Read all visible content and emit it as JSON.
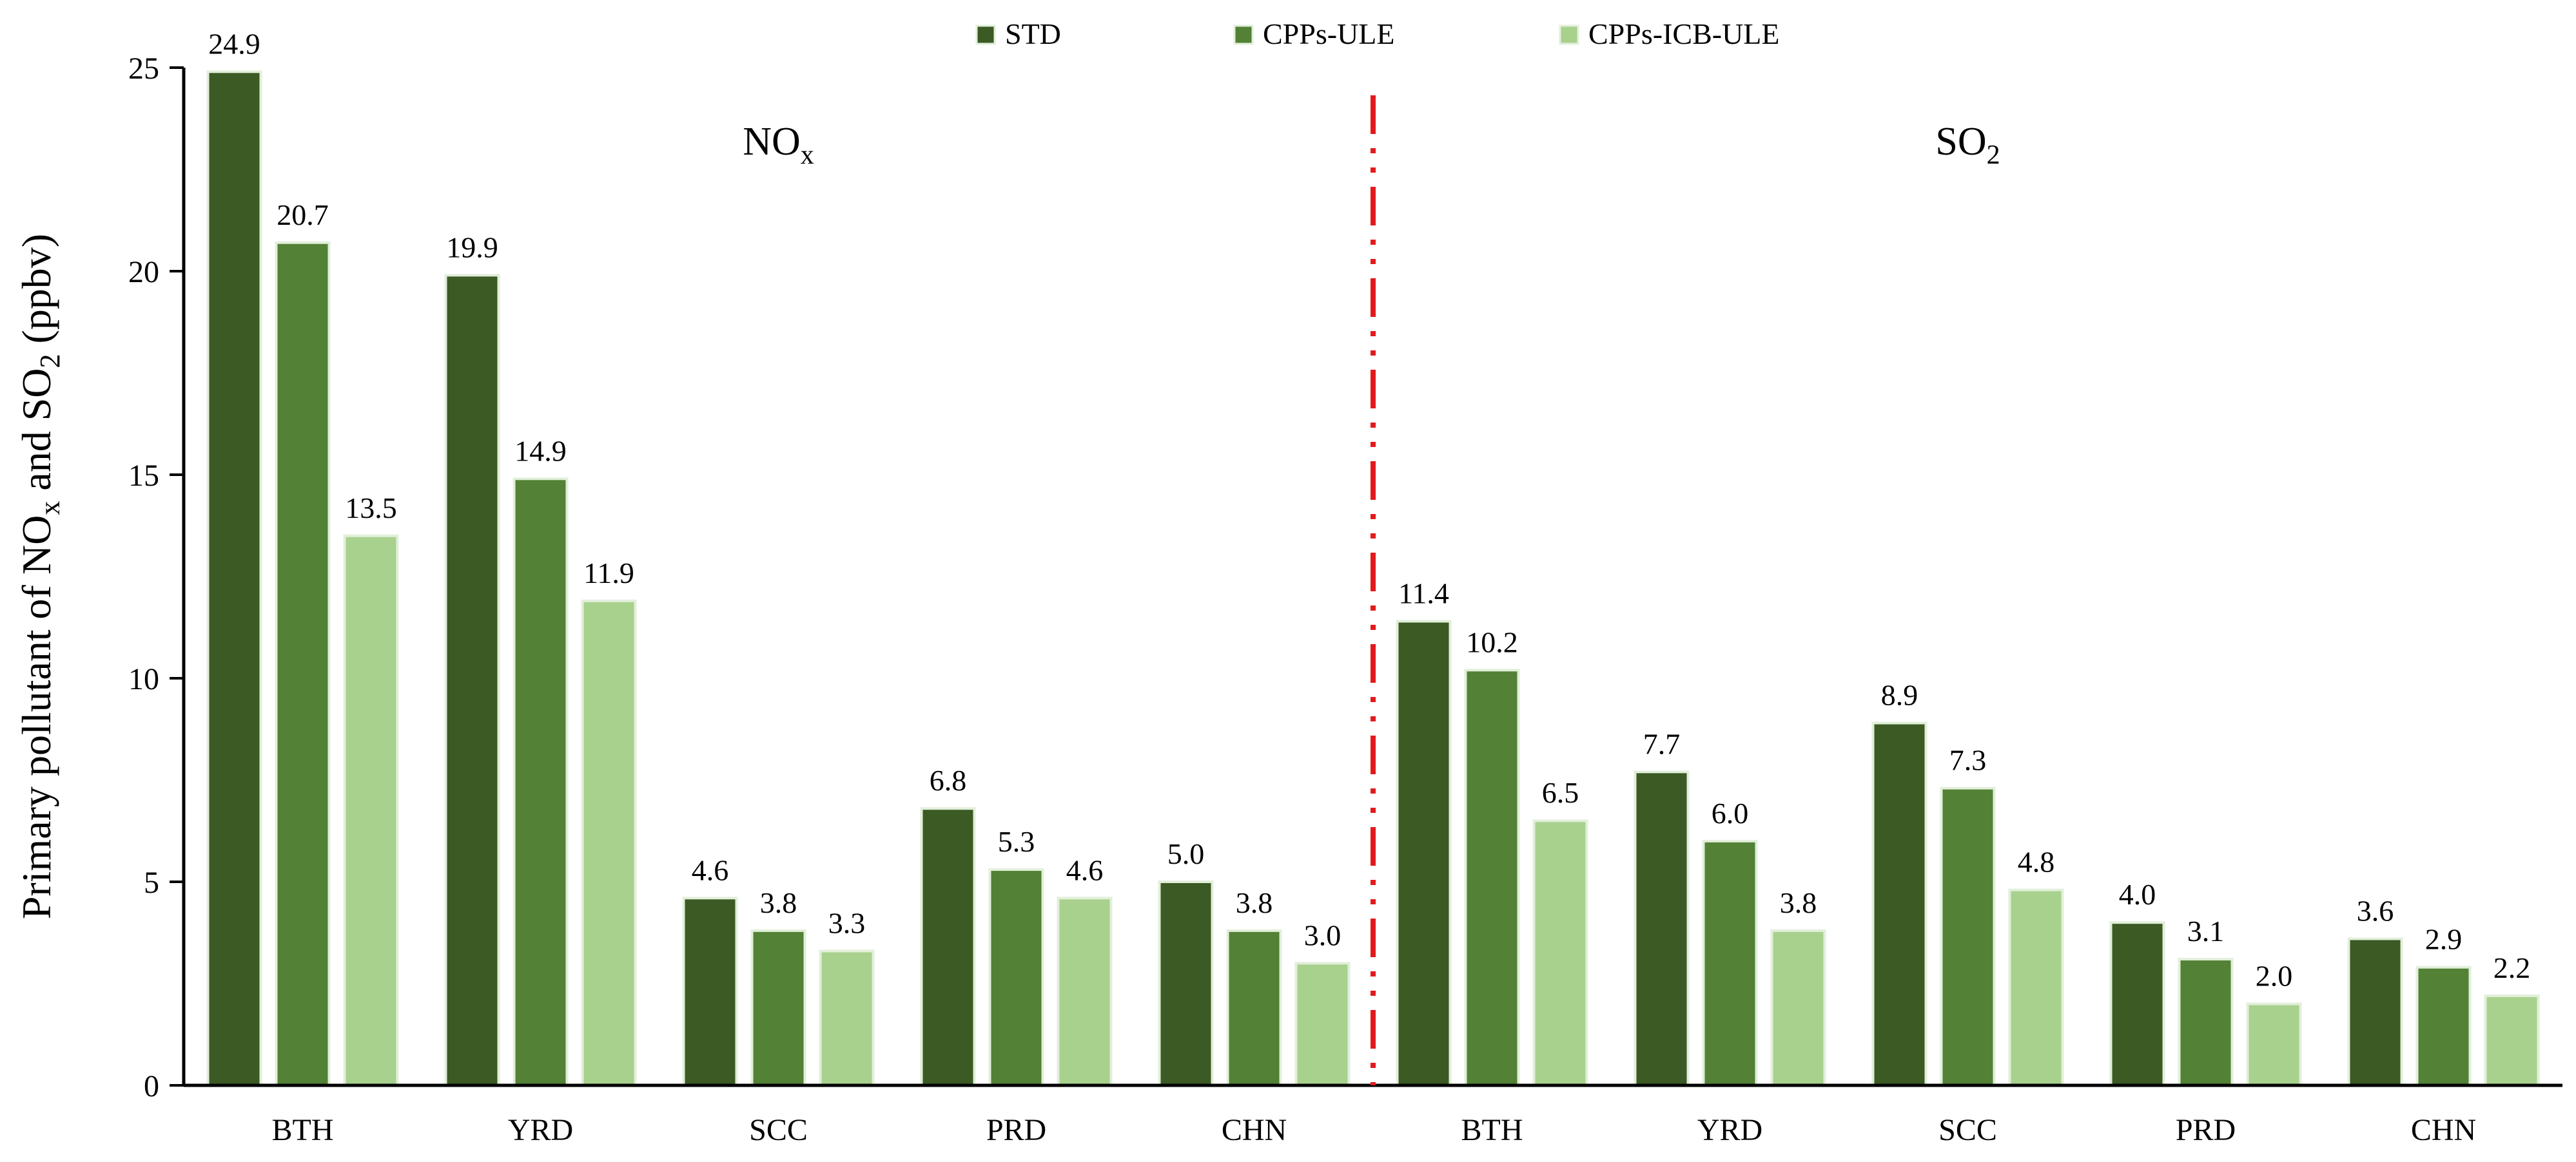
{
  "chart_data": {
    "type": "bar",
    "ylabel": {
      "parts": [
        "Primary pollutant  of  NO",
        "x",
        " and SO",
        "2",
        " (ppbv)"
      ]
    },
    "ylim": [
      0,
      25
    ],
    "yticks": [
      0,
      5,
      10,
      15,
      20,
      25
    ],
    "grid": false,
    "legend_position": "top-center",
    "categories": [
      "BTH",
      "YRD",
      "SCC",
      "PRD",
      "CHN",
      "BTH",
      "YRD",
      "SCC",
      "PRD",
      "CHN"
    ],
    "panels": [
      {
        "label": {
          "base": "NO",
          "sub": "x"
        },
        "category_range": [
          0,
          4
        ]
      },
      {
        "label": {
          "base": "SO",
          "sub": "2"
        },
        "category_range": [
          5,
          9
        ]
      }
    ],
    "separator": {
      "after_category": 4,
      "color": "#e31a1c",
      "style": "dash-dot-dot"
    },
    "series": [
      {
        "name": "STD",
        "color": "#3b5a24",
        "values": [
          24.9,
          19.9,
          4.6,
          6.8,
          5.0,
          11.4,
          7.7,
          8.9,
          4.0,
          3.6
        ]
      },
      {
        "name": "CPPs-ULE",
        "color": "#538135",
        "values": [
          20.7,
          14.9,
          3.8,
          5.3,
          3.8,
          10.2,
          6.0,
          7.3,
          3.1,
          2.9
        ]
      },
      {
        "name": "CPPs-ICB-ULE",
        "color": "#a9d18e",
        "values": [
          13.5,
          11.9,
          3.3,
          4.6,
          3.0,
          6.5,
          3.8,
          4.8,
          2.0,
          2.2
        ]
      }
    ],
    "value_format_decimals": 1
  }
}
